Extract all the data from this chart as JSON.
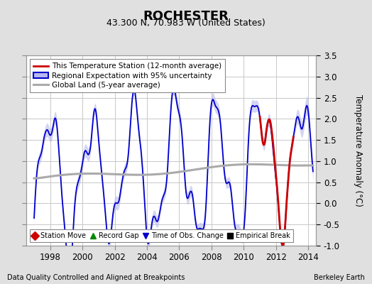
{
  "title": "ROCHESTER",
  "subtitle": "43.300 N, 70.983 W (United States)",
  "ylabel": "Temperature Anomaly (°C)",
  "footer_left": "Data Quality Controlled and Aligned at Breakpoints",
  "footer_right": "Berkeley Earth",
  "xlim": [
    1996.5,
    2014.5
  ],
  "ylim": [
    -1.0,
    3.5
  ],
  "yticks": [
    -1.0,
    -0.5,
    0.0,
    0.5,
    1.0,
    1.5,
    2.0,
    2.5,
    3.0,
    3.5
  ],
  "xticks": [
    1998,
    2000,
    2002,
    2004,
    2006,
    2008,
    2010,
    2012,
    2014
  ],
  "bg_color": "#e0e0e0",
  "plot_bg_color": "#ffffff",
  "grid_color": "#c8c8c8",
  "regional_color": "#0000cc",
  "regional_fill_color": "#b8b8ee",
  "station_color": "#cc0000",
  "global_color": "#aaaaaa",
  "legend1_labels": [
    "This Temperature Station (12-month average)",
    "Regional Expectation with 95% uncertainty",
    "Global Land (5-year average)"
  ],
  "legend2_labels": [
    "Station Move",
    "Record Gap",
    "Time of Obs. Change",
    "Empirical Break"
  ],
  "legend2_colors": [
    "#cc0000",
    "#008800",
    "#0000cc",
    "#000000"
  ],
  "legend2_markers": [
    "D",
    "^",
    "v",
    "s"
  ]
}
